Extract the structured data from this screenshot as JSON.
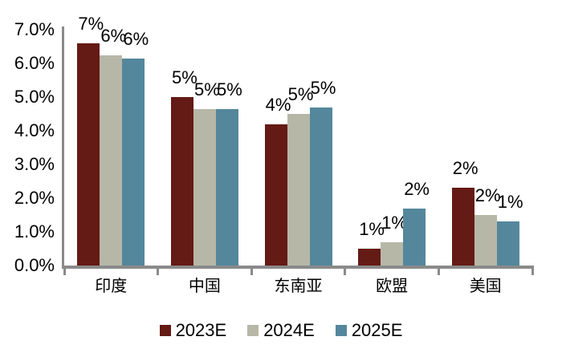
{
  "chart_data": {
    "type": "bar",
    "title": "",
    "categories": [
      "印度",
      "中国",
      "东南亚",
      "欧盟",
      "美国"
    ],
    "series": [
      {
        "name": "2023E",
        "color": "#641A15",
        "values": [
          6.6,
          5.0,
          4.2,
          0.5,
          2.3
        ],
        "labels": [
          "7%",
          "5%",
          "4%",
          "1%",
          "2%"
        ]
      },
      {
        "name": "2024E",
        "color": "#B7B7A7",
        "values": [
          6.25,
          4.65,
          4.5,
          0.7,
          1.5
        ],
        "labels": [
          "6%",
          "5%",
          "5%",
          "1%",
          "2%"
        ]
      },
      {
        "name": "2025E",
        "color": "#54879C",
        "values": [
          6.15,
          4.65,
          4.7,
          1.7,
          1.3
        ],
        "labels": [
          "6%",
          "5%",
          "5%",
          "2%",
          "1%"
        ]
      }
    ],
    "y_axis": {
      "tick_labels": [
        "0.0%",
        "1.0%",
        "2.0%",
        "3.0%",
        "4.0%",
        "5.0%",
        "6.0%",
        "7.0%"
      ],
      "min": 0,
      "max": 7,
      "unit": "%"
    },
    "xlabel": "",
    "ylabel": "",
    "grid": false,
    "legend_position": "bottom",
    "colors": {
      "axis": "#8a8a8a",
      "text": "#000000",
      "background": "#ffffff"
    }
  }
}
